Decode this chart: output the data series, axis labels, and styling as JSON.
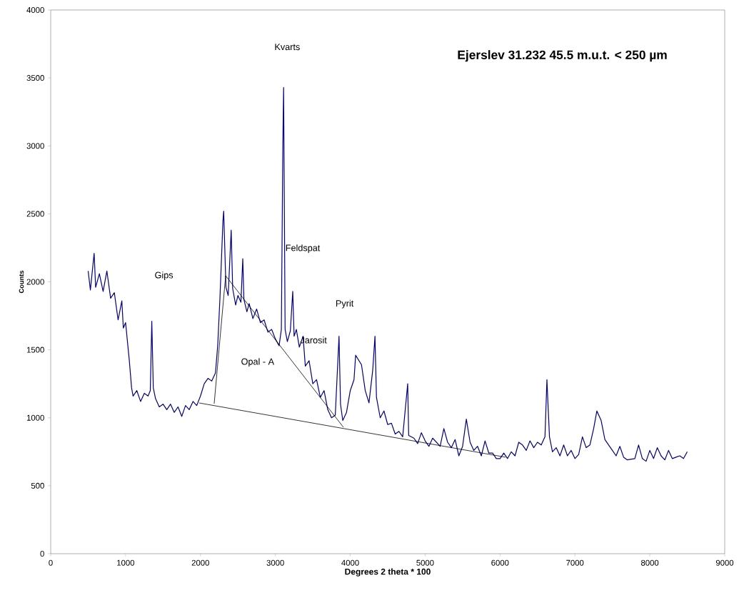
{
  "chart_data": {
    "type": "line",
    "title": "**Ejerslev 31.232 45.5 m.u.t. < 250 µm**",
    "xlabel": "Degrees 2 theta * 100",
    "ylabel": "Counts",
    "xlim": [
      0,
      9000
    ],
    "ylim": [
      0,
      4000
    ],
    "xticks": [
      0,
      1000,
      2000,
      3000,
      4000,
      5000,
      6000,
      7000,
      8000,
      9000
    ],
    "yticks": [
      0,
      500,
      1000,
      1500,
      2000,
      2500,
      3000,
      3500,
      4000
    ],
    "grid": false,
    "marker": "none",
    "line_style": "solid",
    "series": [
      {
        "color": "#000080",
        "x": [
          500,
          530,
          580,
          600,
          650,
          700,
          750,
          800,
          850,
          900,
          950,
          970,
          1000,
          1050,
          1080,
          1100,
          1150,
          1200,
          1250,
          1300,
          1330,
          1350,
          1370,
          1400,
          1450,
          1500,
          1550,
          1600,
          1650,
          1700,
          1750,
          1800,
          1850,
          1900,
          1950,
          2000,
          2050,
          2100,
          2150,
          2200,
          2230,
          2260,
          2300,
          2310,
          2340,
          2370,
          2410,
          2430,
          2470,
          2500,
          2540,
          2565,
          2580,
          2620,
          2650,
          2700,
          2750,
          2800,
          2850,
          2900,
          2950,
          3000,
          3050,
          3080,
          3100,
          3110,
          3130,
          3160,
          3200,
          3232,
          3250,
          3280,
          3320,
          3370,
          3400,
          3450,
          3500,
          3550,
          3600,
          3650,
          3700,
          3750,
          3800,
          3850,
          3870,
          3900,
          3950,
          4000,
          4050,
          4072,
          4150,
          4200,
          4250,
          4300,
          4330,
          4350,
          4400,
          4450,
          4500,
          4550,
          4600,
          4650,
          4700,
          4767,
          4780,
          4850,
          4900,
          4950,
          5000,
          5050,
          5100,
          5200,
          5250,
          5300,
          5350,
          5400,
          5450,
          5500,
          5550,
          5600,
          5650,
          5700,
          5750,
          5800,
          5850,
          5900,
          5950,
          6000,
          6050,
          6100,
          6150,
          6200,
          6250,
          6300,
          6350,
          6400,
          6450,
          6500,
          6550,
          6600,
          6626,
          6660,
          6700,
          6750,
          6800,
          6850,
          6900,
          6950,
          7000,
          7050,
          7100,
          7150,
          7200,
          7250,
          7293,
          7350,
          7400,
          7450,
          7500,
          7550,
          7600,
          7650,
          7700,
          7800,
          7850,
          7900,
          7950,
          8000,
          8050,
          8100,
          8150,
          8200,
          8250,
          8300,
          8350,
          8400,
          8450,
          8500
        ],
        "values": [
          2080,
          1940,
          2210,
          1960,
          2060,
          1930,
          2080,
          1880,
          1920,
          1720,
          1860,
          1660,
          1700,
          1420,
          1220,
          1160,
          1200,
          1120,
          1180,
          1160,
          1200,
          1710,
          1220,
          1140,
          1080,
          1100,
          1060,
          1100,
          1040,
          1080,
          1010,
          1090,
          1060,
          1120,
          1090,
          1160,
          1250,
          1290,
          1270,
          1330,
          1530,
          1880,
          2450,
          2520,
          1960,
          1900,
          2380,
          1950,
          1830,
          1900,
          1850,
          2170,
          1870,
          1780,
          1840,
          1730,
          1800,
          1700,
          1720,
          1630,
          1650,
          1580,
          1530,
          1650,
          3020,
          3430,
          1650,
          1560,
          1640,
          1930,
          1600,
          1650,
          1520,
          1600,
          1380,
          1420,
          1250,
          1280,
          1150,
          1200,
          1060,
          1000,
          1020,
          1600,
          1100,
          980,
          1040,
          1200,
          1280,
          1460,
          1390,
          1200,
          1110,
          1350,
          1600,
          1150,
          1000,
          1050,
          950,
          960,
          880,
          900,
          860,
          1250,
          870,
          850,
          810,
          890,
          830,
          790,
          850,
          790,
          920,
          820,
          780,
          840,
          720,
          790,
          990,
          820,
          760,
          790,
          720,
          830,
          740,
          740,
          700,
          700,
          740,
          700,
          750,
          720,
          820,
          800,
          760,
          830,
          780,
          820,
          800,
          860,
          1280,
          860,
          750,
          780,
          720,
          800,
          720,
          760,
          700,
          730,
          860,
          780,
          800,
          920,
          1050,
          980,
          840,
          800,
          760,
          720,
          790,
          710,
          690,
          700,
          800,
          700,
          680,
          760,
          700,
          780,
          720,
          690,
          760,
          700,
          710,
          720,
          700,
          750
        ]
      },
      {
        "type": "line",
        "color": "#000000",
        "x": [
          2183,
          2336,
          3909
        ],
        "values": [
          1104,
          2045,
          930
        ]
      },
      {
        "type": "line",
        "color": "#000000",
        "x": [
          1983,
          6073
        ],
        "values": [
          1109,
          710
        ]
      }
    ],
    "annotations": [
      "Kvarts",
      "Gips",
      "Feldspat",
      "Pyrit",
      "Jarosit",
      "Opal - A"
    ]
  }
}
